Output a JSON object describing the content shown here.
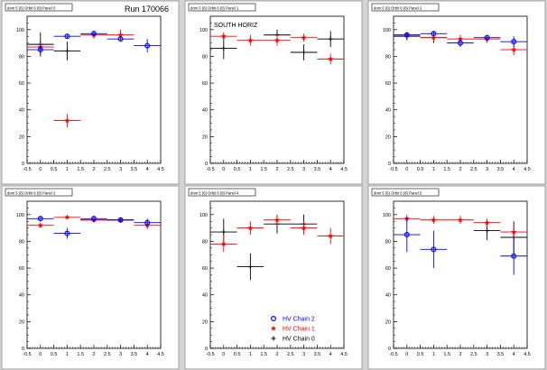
{
  "page": {
    "run_label": "Run 170066"
  },
  "colors": {
    "chain2": "#0000ff",
    "chain1": "#ff0000",
    "chain0": "#000000",
    "canvas_bg": "#d4d4d4",
    "panel_bg": "#ffffff"
  },
  "legend": {
    "entries": [
      {
        "label": "HV Chain 2",
        "marker": "circle",
        "color": "#0000ff"
      },
      {
        "label": "HV Chain 1",
        "marker": "star",
        "color": "#ff0000"
      },
      {
        "label": "HV Chain 0",
        "marker": "plus",
        "color": "#000000"
      }
    ]
  },
  "chart_data": [
    {
      "type": "scatter",
      "title": "dom 5 (6) Orbit 6 (8) Panel 0",
      "annotation": "",
      "xlim": [
        -0.5,
        4.5
      ],
      "ylim": [
        0,
        110
      ],
      "xticks": [
        "-0.5",
        "0",
        "0.5",
        "1",
        "1.5",
        "2",
        "2.5",
        "3",
        "3.5",
        "4",
        "4.5"
      ],
      "yticks": [
        "0",
        "20",
        "40",
        "60",
        "80",
        "100"
      ],
      "series": [
        {
          "color": "#0000ff",
          "marker": "circle",
          "points": [
            {
              "x": 0,
              "y": 85,
              "ex": 0.5,
              "ey": 4
            },
            {
              "x": 1,
              "y": 95,
              "ex": 0.5,
              "ey": 2
            },
            {
              "x": 2,
              "y": 97,
              "ex": 0.5,
              "ey": 2
            },
            {
              "x": 3,
              "y": 93,
              "ex": 0.5,
              "ey": 2
            },
            {
              "x": 4,
              "y": 88,
              "ex": 0.5,
              "ey": 5
            }
          ]
        },
        {
          "color": "#ff0000",
          "marker": "star",
          "points": [
            {
              "x": 0,
              "y": 87,
              "ex": 0.5,
              "ey": 3
            },
            {
              "x": 1,
              "y": 32,
              "ex": 0.5,
              "ey": 5
            },
            {
              "x": 2,
              "y": 96,
              "ex": 0.5,
              "ey": 3
            },
            {
              "x": 3,
              "y": 96,
              "ex": 0.5,
              "ey": 4
            }
          ]
        },
        {
          "color": "#000000",
          "marker": "plus",
          "points": [
            {
              "x": 0,
              "y": 89,
              "ex": 0.5,
              "ey": 9
            },
            {
              "x": 1,
              "y": 84,
              "ex": 0.5,
              "ey": 7
            }
          ]
        }
      ]
    },
    {
      "type": "scatter",
      "title": "dom 5 (6) Orbit 6 (8) Panel 1",
      "annotation": "SOUTH HORIZ",
      "xlim": [
        -0.5,
        4.5
      ],
      "ylim": [
        0,
        110
      ],
      "xticks": [
        "-0.5",
        "0",
        "0.5",
        "1",
        "1.5",
        "2",
        "2.5",
        "3",
        "3.5",
        "4",
        "4.5"
      ],
      "yticks": [
        "0",
        "20",
        "40",
        "60",
        "80",
        "100"
      ],
      "series": [
        {
          "color": "#ff0000",
          "marker": "star",
          "points": [
            {
              "x": 0,
              "y": 95,
              "ex": 0.5,
              "ey": 3
            },
            {
              "x": 1,
              "y": 92,
              "ex": 0.5,
              "ey": 4
            },
            {
              "x": 2,
              "y": 92,
              "ex": 0.5,
              "ey": 4
            },
            {
              "x": 3,
              "y": 94,
              "ex": 0.5,
              "ey": 3
            },
            {
              "x": 4,
              "y": 78,
              "ex": 0.5,
              "ey": 4
            }
          ]
        },
        {
          "color": "#000000",
          "marker": "plus",
          "points": [
            {
              "x": 0,
              "y": 86,
              "ex": 0.5,
              "ey": 8
            },
            {
              "x": 2,
              "y": 96,
              "ex": 0.5,
              "ey": 4
            },
            {
              "x": 3,
              "y": 83,
              "ex": 0.5,
              "ey": 6
            },
            {
              "x": 4,
              "y": 93,
              "ex": 0.5,
              "ey": 6
            }
          ]
        }
      ]
    },
    {
      "type": "scatter",
      "title": "dom 5 (6) Orbit 6 (8) Panel 2",
      "annotation": "",
      "xlim": [
        -0.5,
        4.5
      ],
      "ylim": [
        0,
        110
      ],
      "xticks": [
        "-0.5",
        "0",
        "0.5",
        "1",
        "1.5",
        "2",
        "2.5",
        "3",
        "3.5",
        "4",
        "4.5"
      ],
      "yticks": [
        "0",
        "20",
        "40",
        "60",
        "80",
        "100"
      ],
      "series": [
        {
          "color": "#0000ff",
          "marker": "circle",
          "points": [
            {
              "x": 0,
              "y": 96,
              "ex": 0.5,
              "ey": 2
            },
            {
              "x": 1,
              "y": 97,
              "ex": 0.5,
              "ey": 2
            },
            {
              "x": 2,
              "y": 90,
              "ex": 0.5,
              "ey": 3
            },
            {
              "x": 3,
              "y": 94,
              "ex": 0.5,
              "ey": 2
            },
            {
              "x": 4,
              "y": 91,
              "ex": 0.5,
              "ey": 4
            }
          ]
        },
        {
          "color": "#ff0000",
          "marker": "star",
          "points": [
            {
              "x": 0,
              "y": 96,
              "ex": 0.5,
              "ey": 2
            },
            {
              "x": 1,
              "y": 94,
              "ex": 0.5,
              "ey": 3
            },
            {
              "x": 2,
              "y": 93,
              "ex": 0.5,
              "ey": 3
            },
            {
              "x": 3,
              "y": 93,
              "ex": 0.5,
              "ey": 3
            },
            {
              "x": 4,
              "y": 85,
              "ex": 0.5,
              "ey": 4
            }
          ]
        },
        {
          "color": "#000000",
          "marker": "plus",
          "points": [
            {
              "x": 0,
              "y": 95,
              "ex": 0.5,
              "ey": 3
            },
            {
              "x": 1,
              "y": 94,
              "ex": 0.5,
              "ey": 4
            }
          ]
        }
      ]
    },
    {
      "type": "scatter",
      "title": "dom 5 (6) Orbit 6 (8) Panel 3",
      "annotation": "",
      "xlim": [
        -0.5,
        4.5
      ],
      "ylim": [
        0,
        110
      ],
      "xticks": [
        "-0.5",
        "0",
        "0.5",
        "1",
        "1.5",
        "2",
        "2.5",
        "3",
        "3.5",
        "4",
        "4.5"
      ],
      "yticks": [
        "0",
        "20",
        "40",
        "60",
        "80",
        "100"
      ],
      "series": [
        {
          "color": "#0000ff",
          "marker": "circle",
          "points": [
            {
              "x": 0,
              "y": 97,
              "ex": 0.5,
              "ey": 2
            },
            {
              "x": 1,
              "y": 86,
              "ex": 0.5,
              "ey": 4
            },
            {
              "x": 2,
              "y": 97,
              "ex": 0.5,
              "ey": 2
            },
            {
              "x": 3,
              "y": 96,
              "ex": 0.5,
              "ey": 2
            },
            {
              "x": 4,
              "y": 94,
              "ex": 0.5,
              "ey": 3
            }
          ]
        },
        {
          "color": "#ff0000",
          "marker": "star",
          "points": [
            {
              "x": 0,
              "y": 92,
              "ex": 0.5,
              "ey": 2
            },
            {
              "x": 1,
              "y": 98,
              "ex": 0.5,
              "ey": 1
            },
            {
              "x": 2,
              "y": 96,
              "ex": 0.5,
              "ey": 2
            },
            {
              "x": 3,
              "y": 96,
              "ex": 0.5,
              "ey": 2
            },
            {
              "x": 4,
              "y": 92,
              "ex": 0.5,
              "ey": 3
            }
          ]
        },
        {
          "color": "#000000",
          "marker": "plus",
          "points": [
            {
              "x": 2,
              "y": 96,
              "ex": 0.5,
              "ey": 2
            },
            {
              "x": 3,
              "y": 96,
              "ex": 0.5,
              "ey": 2
            }
          ]
        }
      ]
    },
    {
      "type": "scatter",
      "title": "dom 5 (6) Orbit 6 (8) Panel 4",
      "annotation": "",
      "xlim": [
        -0.5,
        4.5
      ],
      "ylim": [
        0,
        110
      ],
      "xticks": [
        "-0.5",
        "0",
        "0.5",
        "1",
        "1.5",
        "2",
        "2.5",
        "3",
        "3.5",
        "4",
        "4.5"
      ],
      "yticks": [
        "0",
        "20",
        "40",
        "60",
        "80",
        "100"
      ],
      "legend": true,
      "series": [
        {
          "color": "#ff0000",
          "marker": "star",
          "points": [
            {
              "x": 0,
              "y": 78,
              "ex": 0.5,
              "ey": 6
            },
            {
              "x": 1,
              "y": 90,
              "ex": 0.5,
              "ey": 5
            },
            {
              "x": 2,
              "y": 96,
              "ex": 0.5,
              "ey": 4
            },
            {
              "x": 3,
              "y": 90,
              "ex": 0.5,
              "ey": 5
            },
            {
              "x": 4,
              "y": 84,
              "ex": 0.5,
              "ey": 6
            }
          ]
        },
        {
          "color": "#000000",
          "marker": "plus",
          "points": [
            {
              "x": 0,
              "y": 87,
              "ex": 0.5,
              "ey": 10
            },
            {
              "x": 1,
              "y": 61,
              "ex": 0.5,
              "ey": 10
            },
            {
              "x": 2,
              "y": 93,
              "ex": 0.5,
              "ey": 7
            },
            {
              "x": 3,
              "y": 93,
              "ex": 0.5,
              "ey": 7
            }
          ]
        }
      ]
    },
    {
      "type": "scatter",
      "title": "dom 5 (6) Orbit 6 (8) Panel 5",
      "annotation": "",
      "xlim": [
        -0.5,
        4.5
      ],
      "ylim": [
        0,
        110
      ],
      "xticks": [
        "-0.5",
        "0",
        "0.5",
        "1",
        "1.5",
        "2",
        "2.5",
        "3",
        "3.5",
        "4",
        "4.5"
      ],
      "yticks": [
        "0",
        "20",
        "40",
        "60",
        "80",
        "100"
      ],
      "series": [
        {
          "color": "#0000ff",
          "marker": "circle",
          "points": [
            {
              "x": 0,
              "y": 85,
              "ex": 0.5,
              "ey": 13
            },
            {
              "x": 1,
              "y": 74,
              "ex": 0.5,
              "ey": 14
            },
            {
              "x": 4,
              "y": 69,
              "ex": 0.5,
              "ey": 14
            }
          ]
        },
        {
          "color": "#ff0000",
          "marker": "star",
          "points": [
            {
              "x": 0,
              "y": 97,
              "ex": 0.5,
              "ey": 3
            },
            {
              "x": 1,
              "y": 96,
              "ex": 0.5,
              "ey": 3
            },
            {
              "x": 2,
              "y": 96,
              "ex": 0.5,
              "ey": 3
            },
            {
              "x": 3,
              "y": 94,
              "ex": 0.5,
              "ey": 3
            },
            {
              "x": 4,
              "y": 87,
              "ex": 0.5,
              "ey": 4
            }
          ]
        },
        {
          "color": "#000000",
          "marker": "plus",
          "points": [
            {
              "x": 3,
              "y": 88,
              "ex": 0.5,
              "ey": 7
            },
            {
              "x": 4,
              "y": 83,
              "ex": 0.5,
              "ey": 12
            }
          ]
        }
      ]
    }
  ]
}
